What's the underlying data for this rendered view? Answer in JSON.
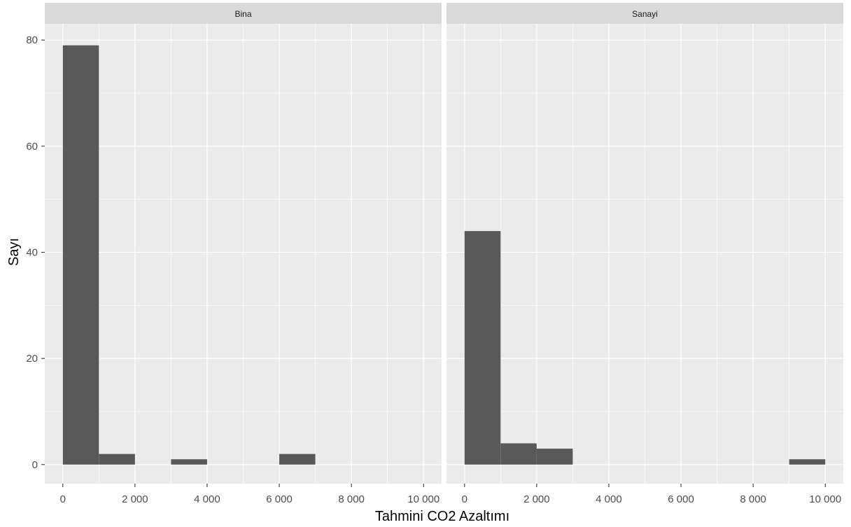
{
  "colors": {
    "panel_background": "#ebebeb",
    "strip_background": "#d9d9d9",
    "gridline": "#ffffff",
    "bar_fill": "#595959",
    "tick_text": "#4d4d4d"
  },
  "chart_data": {
    "type": "bar",
    "chart_kind": "faceted histogram",
    "xlabel": "Tahmini CO2 Azaltımı",
    "ylabel": "Sayı",
    "xlim": [
      -500,
      10500
    ],
    "ylim": [
      -3,
      80
    ],
    "bin_width": 1000,
    "x_ticks": [
      0,
      2000,
      4000,
      6000,
      8000,
      10000
    ],
    "x_tick_labels": [
      "0",
      "2 000",
      "4 000",
      "6 000",
      "8 000",
      "10 000"
    ],
    "y_ticks": [
      0,
      20,
      40,
      60,
      80
    ],
    "y_tick_labels": [
      "0",
      "20",
      "40",
      "60",
      "80"
    ],
    "grid": true,
    "facets": [
      {
        "label": "Bina",
        "bins": [
          {
            "start": 0,
            "end": 1000,
            "count": 79
          },
          {
            "start": 1000,
            "end": 2000,
            "count": 2
          },
          {
            "start": 2000,
            "end": 3000,
            "count": 0
          },
          {
            "start": 3000,
            "end": 4000,
            "count": 1
          },
          {
            "start": 4000,
            "end": 5000,
            "count": 0
          },
          {
            "start": 5000,
            "end": 6000,
            "count": 0
          },
          {
            "start": 6000,
            "end": 7000,
            "count": 2
          },
          {
            "start": 7000,
            "end": 8000,
            "count": 0
          },
          {
            "start": 8000,
            "end": 9000,
            "count": 0
          },
          {
            "start": 9000,
            "end": 10000,
            "count": 0
          }
        ]
      },
      {
        "label": "Sanayi",
        "bins": [
          {
            "start": 0,
            "end": 1000,
            "count": 44
          },
          {
            "start": 1000,
            "end": 2000,
            "count": 4
          },
          {
            "start": 2000,
            "end": 3000,
            "count": 3
          },
          {
            "start": 3000,
            "end": 4000,
            "count": 0
          },
          {
            "start": 4000,
            "end": 5000,
            "count": 0
          },
          {
            "start": 5000,
            "end": 6000,
            "count": 0
          },
          {
            "start": 6000,
            "end": 7000,
            "count": 0
          },
          {
            "start": 7000,
            "end": 8000,
            "count": 0
          },
          {
            "start": 8000,
            "end": 9000,
            "count": 0
          },
          {
            "start": 9000,
            "end": 10000,
            "count": 1
          }
        ]
      }
    ]
  }
}
